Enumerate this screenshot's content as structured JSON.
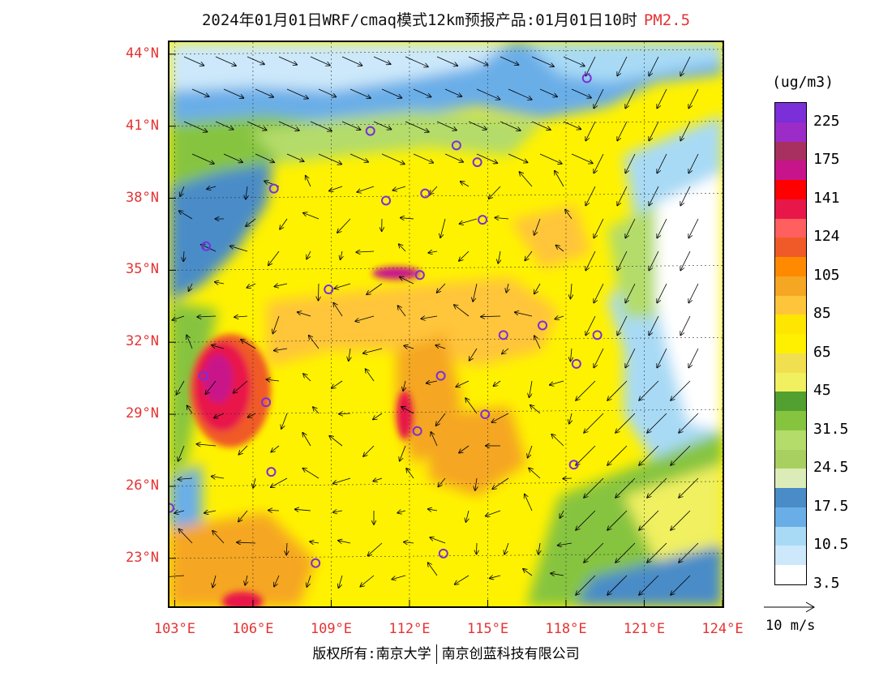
{
  "title": {
    "main": "2024年01月01日WRF/cmaq模式12km预报产品:01月01日10时",
    "variable": "PM2.5"
  },
  "lat_labels": [
    "44°N",
    "41°N",
    "38°N",
    "35°N",
    "32°N",
    "29°N",
    "26°N",
    "23°N"
  ],
  "lon_labels": [
    "103°E",
    "106°E",
    "109°E",
    "112°E",
    "115°E",
    "118°E",
    "121°E",
    "124°E"
  ],
  "map_extent": {
    "lon": [
      102.8,
      124.0
    ],
    "lat": [
      21.0,
      44.5
    ]
  },
  "colorbar": {
    "unit": "(ug/m3)",
    "tick_labels": [
      "225",
      "175",
      "141",
      "124",
      "105",
      "85",
      "65",
      "45",
      "31.5",
      "24.5",
      "17.5",
      "10.5",
      "3.5"
    ],
    "colors_top_to_bottom": [
      "#7a2fd8",
      "#9b2cc8",
      "#a83060",
      "#c8148a",
      "#ff0000",
      "#e8174a",
      "#ff5f5f",
      "#f05a28",
      "#ff8a00",
      "#f5a623",
      "#ffc53a",
      "#ffe600",
      "#fff000",
      "#f0e050",
      "#f0f060",
      "#52a030",
      "#86c440",
      "#b4dc6a",
      "#a8d060",
      "#dcecb8",
      "#4a8cc8",
      "#6aaee8",
      "#a8daf5",
      "#cce8fa",
      "#ffffff"
    ]
  },
  "wind_reference": {
    "label": "10 m/s"
  },
  "stations": [
    {
      "lon": 118.8,
      "lat": 43.0
    },
    {
      "lon": 110.5,
      "lat": 40.8
    },
    {
      "lon": 113.8,
      "lat": 40.2
    },
    {
      "lon": 114.6,
      "lat": 39.5
    },
    {
      "lon": 106.8,
      "lat": 38.4
    },
    {
      "lon": 111.1,
      "lat": 37.9
    },
    {
      "lon": 112.6,
      "lat": 38.2
    },
    {
      "lon": 114.8,
      "lat": 37.1
    },
    {
      "lon": 104.2,
      "lat": 36.0
    },
    {
      "lon": 112.4,
      "lat": 34.8
    },
    {
      "lon": 108.9,
      "lat": 34.2
    },
    {
      "lon": 117.1,
      "lat": 32.7
    },
    {
      "lon": 115.6,
      "lat": 32.3
    },
    {
      "lon": 119.2,
      "lat": 32.3
    },
    {
      "lon": 118.4,
      "lat": 31.1
    },
    {
      "lon": 113.2,
      "lat": 30.6
    },
    {
      "lon": 104.1,
      "lat": 30.6
    },
    {
      "lon": 106.5,
      "lat": 29.5
    },
    {
      "lon": 114.9,
      "lat": 29.0
    },
    {
      "lon": 112.3,
      "lat": 28.3
    },
    {
      "lon": 106.7,
      "lat": 26.6
    },
    {
      "lon": 118.3,
      "lat": 26.9
    },
    {
      "lon": 102.8,
      "lat": 25.1
    },
    {
      "lon": 108.4,
      "lat": 22.8
    },
    {
      "lon": 113.3,
      "lat": 23.2
    }
  ],
  "footer": {
    "left": "版权所有:南京大学",
    "right": "南京创蓝科技有限公司"
  }
}
